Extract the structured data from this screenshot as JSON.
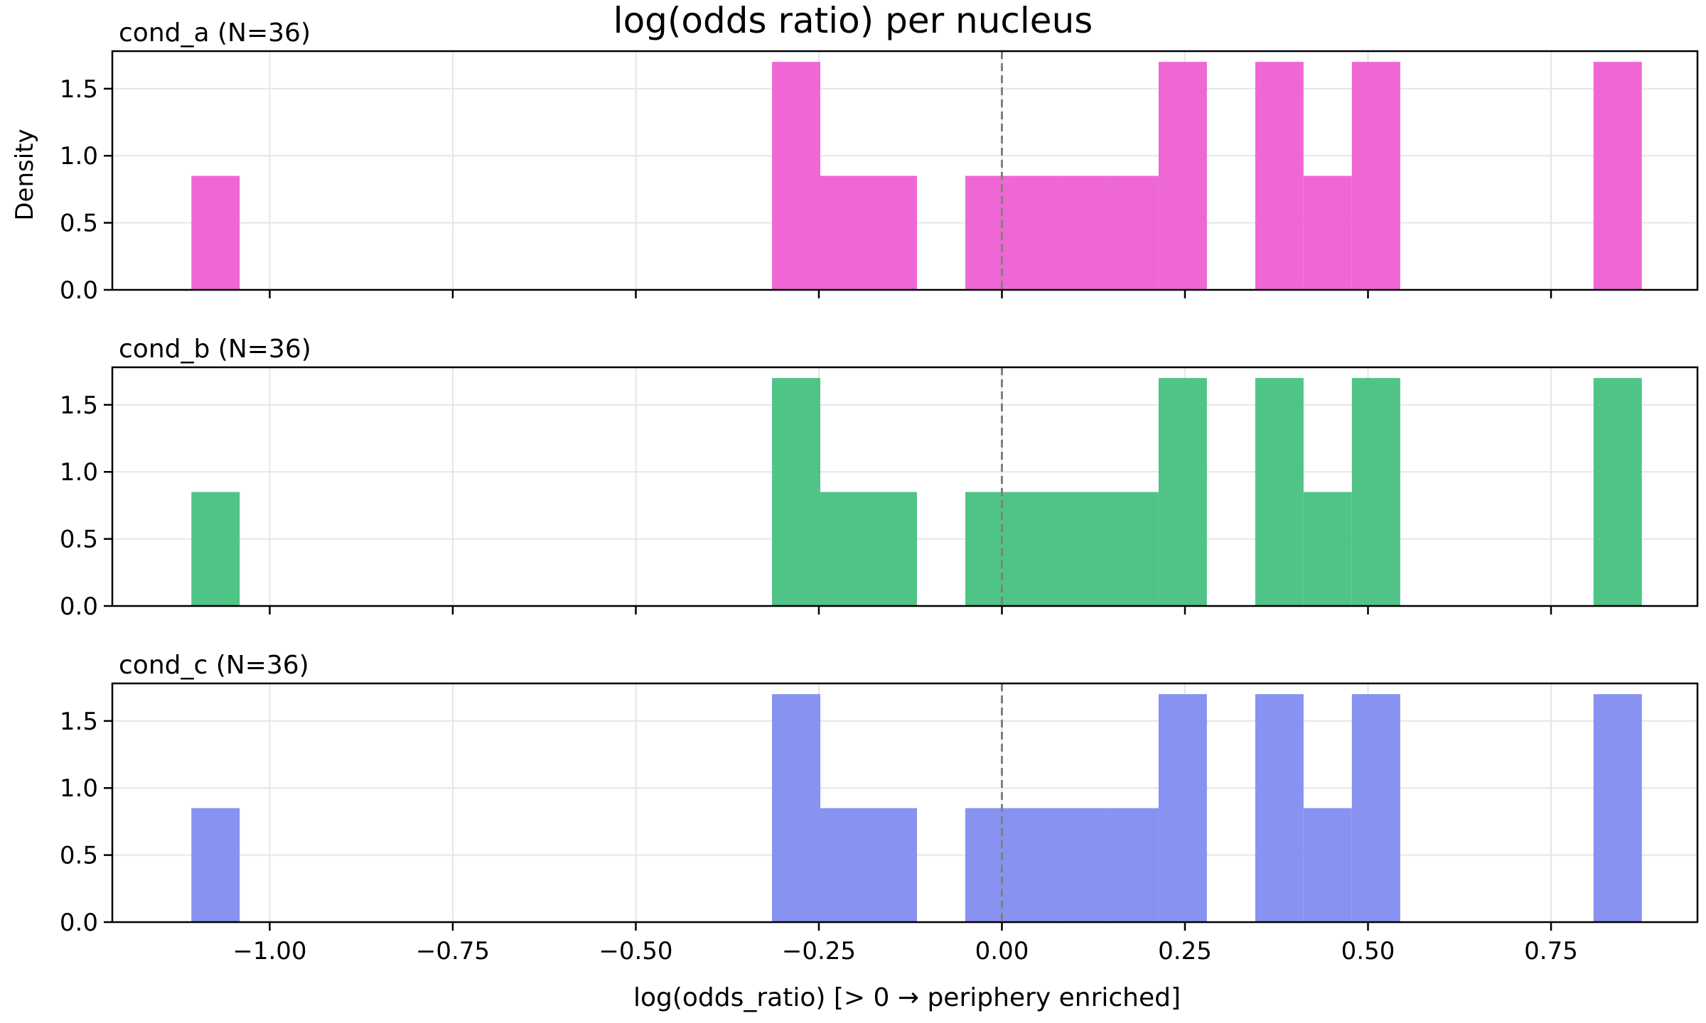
{
  "chart_data": {
    "type": "bar",
    "title": "log(odds ratio) per nucleus",
    "xlabel": "log(odds_ratio)  [> 0 → periphery enriched]",
    "ylabel": "Density",
    "xlim": [
      -1.215,
      0.95
    ],
    "ylim": [
      0,
      1.78
    ],
    "xticks": [
      -1.0,
      -0.75,
      -0.5,
      -0.25,
      0.0,
      0.25,
      0.5,
      0.75
    ],
    "xtick_labels": [
      "−1.00",
      "−0.75",
      "−0.50",
      "−0.25",
      "0.00",
      "0.25",
      "0.50",
      "0.75"
    ],
    "yticks": [
      0.0,
      0.5,
      1.0,
      1.5
    ],
    "ytick_labels": [
      "0.0",
      "0.5",
      "1.0",
      "1.5"
    ],
    "grid": true,
    "reference_line": {
      "x": 0.0,
      "style": "dashed",
      "color": "#808080"
    },
    "panels": [
      {
        "label": "cond_a  (N=36)",
        "color": "#ef67d4",
        "bins": [
          {
            "x0": -1.107,
            "x1": -1.041,
            "density": 0.85
          },
          {
            "x0": -0.314,
            "x1": -0.248,
            "density": 1.7
          },
          {
            "x0": -0.248,
            "x1": -0.182,
            "density": 0.85
          },
          {
            "x0": -0.182,
            "x1": -0.116,
            "density": 0.85
          },
          {
            "x0": -0.05,
            "x1": 0.016,
            "density": 0.85
          },
          {
            "x0": 0.016,
            "x1": 0.082,
            "density": 0.85
          },
          {
            "x0": 0.082,
            "x1": 0.148,
            "density": 0.85
          },
          {
            "x0": 0.148,
            "x1": 0.214,
            "density": 0.85
          },
          {
            "x0": 0.214,
            "x1": 0.28,
            "density": 1.7
          },
          {
            "x0": 0.346,
            "x1": 0.412,
            "density": 1.7
          },
          {
            "x0": 0.412,
            "x1": 0.478,
            "density": 0.85
          },
          {
            "x0": 0.478,
            "x1": 0.544,
            "density": 1.7
          },
          {
            "x0": 0.808,
            "x1": 0.874,
            "density": 1.7
          }
        ]
      },
      {
        "label": "cond_b  (N=36)",
        "color": "#50c487",
        "bins": [
          {
            "x0": -1.107,
            "x1": -1.041,
            "density": 0.85
          },
          {
            "x0": -0.314,
            "x1": -0.248,
            "density": 1.7
          },
          {
            "x0": -0.248,
            "x1": -0.182,
            "density": 0.85
          },
          {
            "x0": -0.182,
            "x1": -0.116,
            "density": 0.85
          },
          {
            "x0": -0.05,
            "x1": 0.016,
            "density": 0.85
          },
          {
            "x0": 0.016,
            "x1": 0.082,
            "density": 0.85
          },
          {
            "x0": 0.082,
            "x1": 0.148,
            "density": 0.85
          },
          {
            "x0": 0.148,
            "x1": 0.214,
            "density": 0.85
          },
          {
            "x0": 0.214,
            "x1": 0.28,
            "density": 1.7
          },
          {
            "x0": 0.346,
            "x1": 0.412,
            "density": 1.7
          },
          {
            "x0": 0.412,
            "x1": 0.478,
            "density": 0.85
          },
          {
            "x0": 0.478,
            "x1": 0.544,
            "density": 1.7
          },
          {
            "x0": 0.808,
            "x1": 0.874,
            "density": 1.7
          }
        ]
      },
      {
        "label": "cond_c  (N=36)",
        "color": "#8892f0",
        "bins": [
          {
            "x0": -1.107,
            "x1": -1.041,
            "density": 0.85
          },
          {
            "x0": -0.314,
            "x1": -0.248,
            "density": 1.7
          },
          {
            "x0": -0.248,
            "x1": -0.182,
            "density": 0.85
          },
          {
            "x0": -0.182,
            "x1": -0.116,
            "density": 0.85
          },
          {
            "x0": -0.05,
            "x1": 0.016,
            "density": 0.85
          },
          {
            "x0": 0.016,
            "x1": 0.082,
            "density": 0.85
          },
          {
            "x0": 0.082,
            "x1": 0.148,
            "density": 0.85
          },
          {
            "x0": 0.148,
            "x1": 0.214,
            "density": 0.85
          },
          {
            "x0": 0.214,
            "x1": 0.28,
            "density": 1.7
          },
          {
            "x0": 0.346,
            "x1": 0.412,
            "density": 1.7
          },
          {
            "x0": 0.412,
            "x1": 0.478,
            "density": 0.85
          },
          {
            "x0": 0.478,
            "x1": 0.544,
            "density": 1.7
          },
          {
            "x0": 0.808,
            "x1": 0.874,
            "density": 1.7
          }
        ]
      }
    ]
  }
}
